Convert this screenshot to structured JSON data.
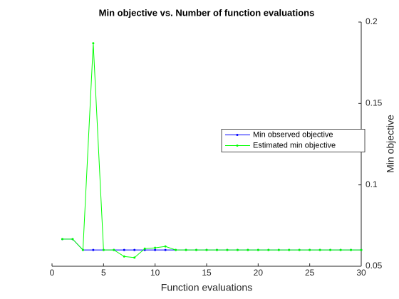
{
  "chart_data": {
    "type": "line",
    "title": "Min objective vs. Number of function evaluations",
    "xlabel": "Function evaluations",
    "ylabel": "Min objective",
    "x": [
      1,
      2,
      3,
      4,
      5,
      6,
      7,
      8,
      9,
      10,
      11,
      12,
      13,
      14,
      15,
      16,
      17,
      18,
      19,
      20,
      21,
      22,
      23,
      24,
      25,
      26,
      27,
      28,
      29,
      30
    ],
    "series": [
      {
        "name": "Min observed objective",
        "color": "#0000ff",
        "values": [
          0.0667,
          0.0667,
          0.06,
          0.06,
          0.06,
          0.06,
          0.06,
          0.06,
          0.06,
          0.06,
          0.06,
          0.06,
          0.06,
          0.06,
          0.06,
          0.06,
          0.06,
          0.06,
          0.06,
          0.06,
          0.06,
          0.06,
          0.06,
          0.06,
          0.06,
          0.06,
          0.06,
          0.06,
          0.06,
          0.06
        ]
      },
      {
        "name": "Estimated min objective",
        "color": "#00ff00",
        "values": [
          0.0667,
          0.0667,
          0.06,
          0.187,
          0.06,
          0.06,
          0.056,
          0.0553,
          0.0608,
          0.0613,
          0.0622,
          0.06,
          0.06,
          0.06,
          0.06,
          0.06,
          0.06,
          0.06,
          0.06,
          0.06,
          0.06,
          0.06,
          0.06,
          0.06,
          0.06,
          0.06,
          0.06,
          0.06,
          0.06,
          0.06
        ]
      }
    ],
    "xlim": [
      0,
      30
    ],
    "xticks": [
      0,
      5,
      10,
      15,
      20,
      25,
      30
    ],
    "ylim": [
      0.05,
      0.2
    ],
    "yticks": [
      0.05,
      0.1,
      0.15,
      0.2
    ],
    "y_axis_side": "right",
    "legend": "east"
  }
}
